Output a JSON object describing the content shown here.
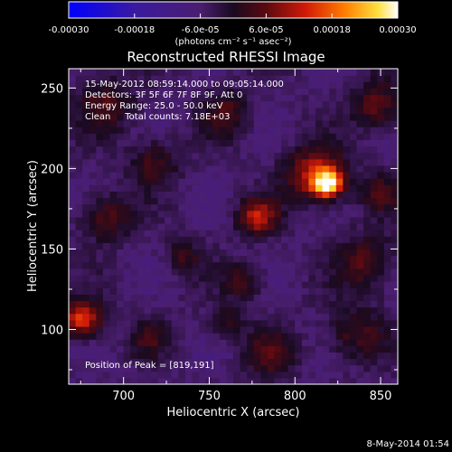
{
  "chart_data": {
    "type": "heatmap",
    "title": "Reconstructed RHESSI Image",
    "xlabel": "Heliocentric X (arcsec)",
    "ylabel": "Heliocentric Y (arcsec)",
    "xlim": [
      668,
      860
    ],
    "ylim": [
      66,
      262
    ],
    "x_ticks": [
      700,
      750,
      800,
      850
    ],
    "y_ticks": [
      100,
      150,
      200,
      250
    ],
    "colorbar": {
      "range": [
        -0.0003,
        0.0003
      ],
      "tick_values": [
        -0.0003,
        -0.00018,
        -6e-05,
        6e-05,
        0.00018,
        0.0003
      ],
      "tick_labels": [
        "-0.00030",
        "-0.00018",
        "-6.0e-05",
        "6.0e-05",
        "0.00018",
        "0.00030"
      ],
      "unit_label": "(photons cm⁻² s⁻¹ asec⁻²)"
    },
    "annotations": [
      "15-May-2012 08:59:14.000 to 09:05:14.000",
      "Detectors: 3F 5F 6F 7F 8F 9F, Att 0",
      "Energy Range: 25.0 - 50.0 keV",
      "Clean     Total counts: 7.18E+03"
    ],
    "peak_text": "Position of Peak = [819,191]",
    "peak": {
      "x": 819,
      "y": 191,
      "value": 0.0003
    },
    "sources": [
      {
        "x": 819,
        "y": 191,
        "amp": 1.0,
        "sigma": 6
      },
      {
        "x": 812,
        "y": 197,
        "amp": 0.55,
        "sigma": 12
      },
      {
        "x": 778,
        "y": 170,
        "amp": 0.55,
        "sigma": 8
      },
      {
        "x": 676,
        "y": 107,
        "amp": 0.7,
        "sigma": 8
      },
      {
        "x": 848,
        "y": 240,
        "amp": 0.4,
        "sigma": 10
      },
      {
        "x": 842,
        "y": 142,
        "amp": 0.35,
        "sigma": 12
      },
      {
        "x": 835,
        "y": 98,
        "amp": 0.3,
        "sigma": 12
      },
      {
        "x": 690,
        "y": 240,
        "amp": 0.3,
        "sigma": 12
      },
      {
        "x": 718,
        "y": 205,
        "amp": 0.3,
        "sigma": 10
      },
      {
        "x": 760,
        "y": 235,
        "amp": 0.3,
        "sigma": 10
      },
      {
        "x": 690,
        "y": 170,
        "amp": 0.35,
        "sigma": 10
      },
      {
        "x": 735,
        "y": 145,
        "amp": 0.25,
        "sigma": 8
      },
      {
        "x": 770,
        "y": 130,
        "amp": 0.3,
        "sigma": 8
      },
      {
        "x": 785,
        "y": 85,
        "amp": 0.3,
        "sigma": 10
      },
      {
        "x": 715,
        "y": 95,
        "amp": 0.25,
        "sigma": 8
      },
      {
        "x": 850,
        "y": 185,
        "amp": 0.3,
        "sigma": 8
      },
      {
        "x": 760,
        "y": 105,
        "amp": 0.22,
        "sigma": 8
      }
    ]
  },
  "footer_date": "8-May-2014 01:54"
}
